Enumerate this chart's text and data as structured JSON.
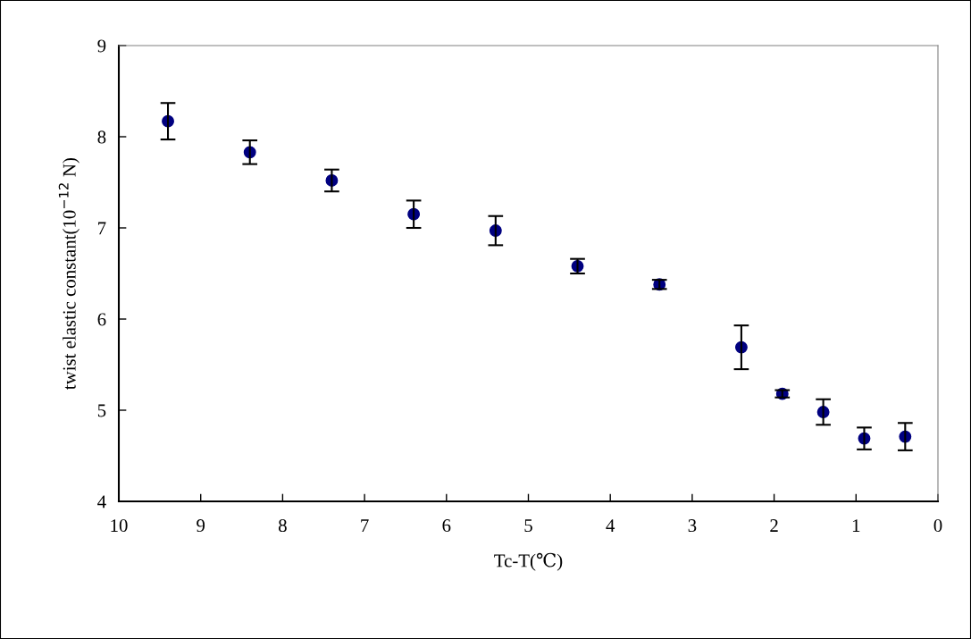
{
  "chart_data": {
    "type": "scatter",
    "xlabel": "Tc-T(℃)",
    "ylabel": "twist elastic constant(10$^{−12}$ N)",
    "x": [
      9.4,
      8.4,
      7.4,
      6.4,
      5.4,
      4.4,
      3.4,
      2.4,
      1.9,
      1.4,
      0.9,
      0.4
    ],
    "values": [
      8.17,
      7.83,
      7.52,
      7.15,
      6.97,
      6.58,
      6.38,
      5.69,
      5.18,
      4.98,
      4.69,
      4.71
    ],
    "errors": [
      0.2,
      0.13,
      0.12,
      0.15,
      0.16,
      0.08,
      0.05,
      0.24,
      0.04,
      0.14,
      0.12,
      0.15
    ],
    "color": "#000080",
    "marker": "circle",
    "xlim": [
      10,
      0
    ],
    "xticks": [
      10,
      9,
      8,
      7,
      6,
      5,
      4,
      3,
      2,
      1,
      0
    ],
    "ylim": [
      4,
      9
    ],
    "yticks": [
      4,
      5,
      6,
      7,
      8,
      9
    ],
    "grid": false,
    "legend": false
  }
}
